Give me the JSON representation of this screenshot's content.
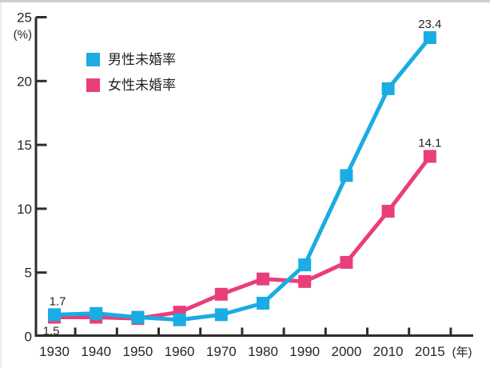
{
  "chart_data": {
    "type": "line",
    "title": "",
    "x_labels": [
      "1930",
      "1940",
      "1950",
      "1960",
      "1970",
      "1980",
      "1990",
      "2000",
      "2010",
      "2015"
    ],
    "x_axis_unit": "(年)",
    "y_axis_unit": "(%)",
    "ylim": [
      0,
      25
    ],
    "yticks": [
      0,
      5,
      10,
      15,
      20,
      25
    ],
    "grid": false,
    "legend_position": "top-left-inside",
    "ticks_between_categories": true,
    "axis_color": "#2d2d2d",
    "text_color": "#262626",
    "series": [
      {
        "name": "男性未婚率",
        "color": "#1aace2",
        "values": [
          1.7,
          1.8,
          1.5,
          1.3,
          1.7,
          2.6,
          5.6,
          12.6,
          19.4,
          23.4
        ]
      },
      {
        "name": "女性未婚率",
        "color": "#e93e7b",
        "values": [
          1.5,
          1.5,
          1.4,
          1.9,
          3.3,
          4.5,
          4.3,
          5.8,
          9.8,
          14.1
        ]
      }
    ],
    "annotations": [
      {
        "text": "1.7",
        "series": 0,
        "x_index": 0,
        "position": "above"
      },
      {
        "text": "1.5",
        "series": 1,
        "x_index": 0,
        "position": "below"
      },
      {
        "text": "23.4",
        "series": 0,
        "x_index": 9,
        "position": "above"
      },
      {
        "text": "14.1",
        "series": 1,
        "x_index": 9,
        "position": "above"
      }
    ]
  }
}
